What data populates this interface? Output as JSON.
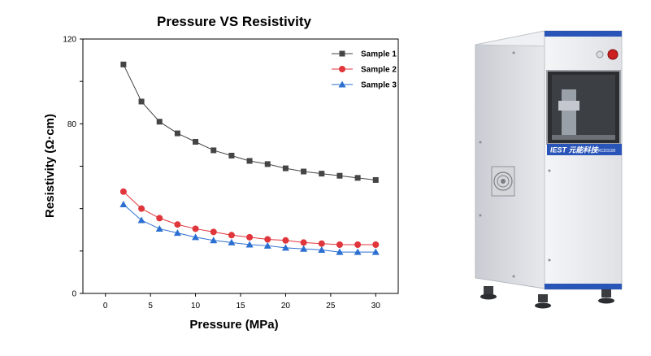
{
  "chart_data": {
    "type": "line",
    "title": "Pressure VS Resistivity",
    "xlabel": "Pressure (MPa)",
    "ylabel": "Resistivity (Ω·cm)",
    "xlim": [
      -2.5,
      32.5
    ],
    "ylim": [
      0,
      120
    ],
    "xticks": [
      0,
      5,
      10,
      15,
      20,
      25,
      30
    ],
    "yticks": [
      0,
      80,
      120
    ],
    "yminor": [
      20,
      40,
      60,
      100
    ],
    "grid": false,
    "legend_position": "top-right",
    "x": [
      2,
      4,
      6,
      8,
      10,
      12,
      14,
      16,
      18,
      20,
      22,
      24,
      26,
      28,
      30
    ],
    "series": [
      {
        "name": "Sample 1",
        "marker": "square",
        "color": "#454545",
        "values": [
          108,
          90.5,
          81,
          75.5,
          71.5,
          67.5,
          65,
          62.5,
          61,
          59,
          57.5,
          56.5,
          55.5,
          54.5,
          53.5
        ]
      },
      {
        "name": "Sample 2",
        "marker": "circle",
        "color": "#e0353b",
        "values": [
          48,
          40,
          35.5,
          32.5,
          30.5,
          29,
          27.5,
          26.5,
          25.5,
          25,
          24,
          23.5,
          23,
          23,
          23
        ]
      },
      {
        "name": "Sample 3",
        "marker": "triangle",
        "color": "#2b6fd1",
        "values": [
          42,
          34.5,
          30.5,
          28.5,
          26.5,
          25,
          24,
          23,
          22.5,
          21.5,
          21,
          20.5,
          19.5,
          19.5,
          19.5
        ]
      }
    ]
  },
  "device": {
    "brand": "IEST 元能科技",
    "model": "PRCD3100"
  }
}
